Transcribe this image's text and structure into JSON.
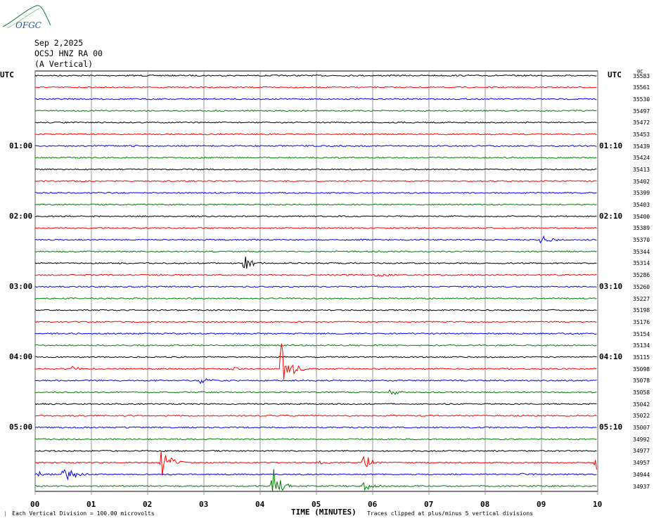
{
  "logo": {
    "text": "OFGC",
    "icon": "ofgc-logo-icon"
  },
  "header": {
    "date": "Sep 2,2025",
    "station": "OCSJ HNZ RA 00",
    "component": "(A Vertical)"
  },
  "utc_left": "UTC",
  "utc_right": "UTC",
  "colors": {
    "trace_cycle": [
      "#000000",
      "#ff0000",
      "#0000ff",
      "#008000"
    ],
    "grid": "#808080"
  },
  "chart_data": {
    "type": "line",
    "title": "",
    "xlabel": "TIME (MINUTES)",
    "xlim": [
      0,
      10
    ],
    "x_ticks": [
      "00",
      "01",
      "02",
      "03",
      "04",
      "05",
      "06",
      "07",
      "08",
      "09",
      "10"
    ],
    "left_time_labels": [
      {
        "row": 6,
        "text": "01:00"
      },
      {
        "row": 12,
        "text": "02:00"
      },
      {
        "row": 18,
        "text": "03:00"
      },
      {
        "row": 24,
        "text": "04:00"
      },
      {
        "row": 30,
        "text": "05:00"
      }
    ],
    "right_time_labels": [
      {
        "row": 6,
        "text": "01:10"
      },
      {
        "row": 12,
        "text": "02:10"
      },
      {
        "row": 18,
        "text": "03:10"
      },
      {
        "row": 24,
        "text": "04:10"
      },
      {
        "row": 30,
        "text": "05:10"
      }
    ],
    "top_right_note": "0C",
    "row_values": [
      "35583",
      "35561",
      "35530",
      "35497",
      "35472",
      "35453",
      "35439",
      "35424",
      "35413",
      "35402",
      "35399",
      "35403",
      "35400",
      "35389",
      "35370",
      "35344",
      "35314",
      "35286",
      "35260",
      "35227",
      "35198",
      "35176",
      "35154",
      "35134",
      "35115",
      "35098",
      "35078",
      "35058",
      "35042",
      "35022",
      "35007",
      "34992",
      "34977",
      "34957",
      "34944",
      "34937"
    ],
    "events": [
      {
        "row": 14,
        "minute": 9.0,
        "amplitude": 0.4
      },
      {
        "row": 16,
        "minute": 3.72,
        "amplitude": 0.7
      },
      {
        "row": 17,
        "minute": 6.05,
        "amplitude": 0.15
      },
      {
        "row": 25,
        "minute": 0.65,
        "amplitude": 0.2
      },
      {
        "row": 25,
        "minute": 3.5,
        "amplitude": 0.12
      },
      {
        "row": 25,
        "minute": 4.38,
        "amplitude": 3.2
      },
      {
        "row": 26,
        "minute": 2.95,
        "amplitude": 0.3
      },
      {
        "row": 27,
        "minute": 6.3,
        "amplitude": 0.35
      },
      {
        "row": 33,
        "minute": 2.25,
        "amplitude": 1.8
      },
      {
        "row": 33,
        "minute": 5.0,
        "amplitude": 0.2
      },
      {
        "row": 33,
        "minute": 5.85,
        "amplitude": 1.0
      },
      {
        "row": 33,
        "minute": 9.98,
        "amplitude": 0.8
      },
      {
        "row": 34,
        "minute": 0.05,
        "amplitude": 0.3
      },
      {
        "row": 34,
        "minute": 0.52,
        "amplitude": 1.2
      },
      {
        "row": 34,
        "minute": 8.6,
        "amplitude": 0.1
      },
      {
        "row": 35,
        "minute": 4.22,
        "amplitude": 2.0
      },
      {
        "row": 35,
        "minute": 5.85,
        "amplitude": 0.5
      }
    ]
  },
  "footer": {
    "scale_note": "Each Vertical Division = 100.00 microvolts",
    "clip_note": "Traces clipped at plus/minus 5 vertical divisions"
  }
}
